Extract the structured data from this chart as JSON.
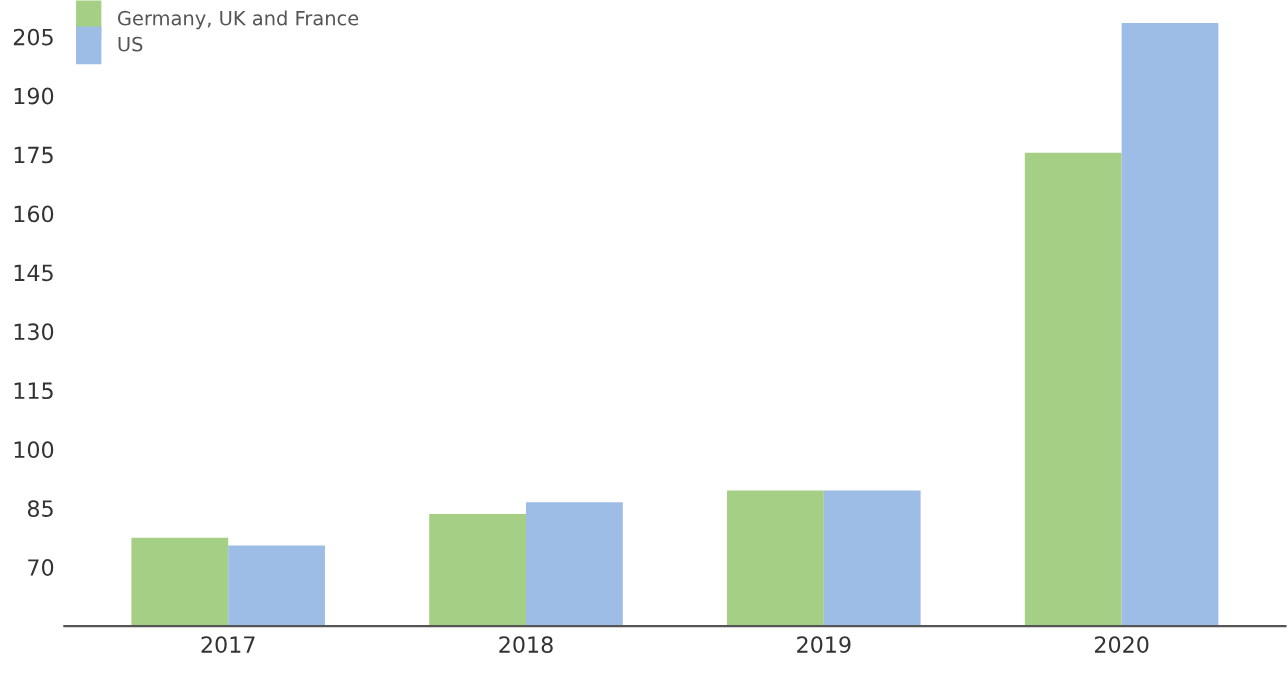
{
  "chart_data": {
    "type": "bar",
    "categories": [
      "2017",
      "2018",
      "2019",
      "2020"
    ],
    "series": [
      {
        "name": "Germany, UK and France",
        "color": "#a5cf84",
        "values": [
          77.5,
          83.5,
          89.5,
          175.5
        ]
      },
      {
        "name": "US",
        "color": "#9dbde6",
        "values": [
          75.5,
          86.5,
          89.5,
          208.5
        ]
      }
    ],
    "ylim": [
      55,
      214
    ],
    "yticks": [
      70,
      85,
      100,
      115,
      130,
      145,
      160,
      175,
      190,
      205
    ],
    "grid": false,
    "legend": "top left"
  }
}
